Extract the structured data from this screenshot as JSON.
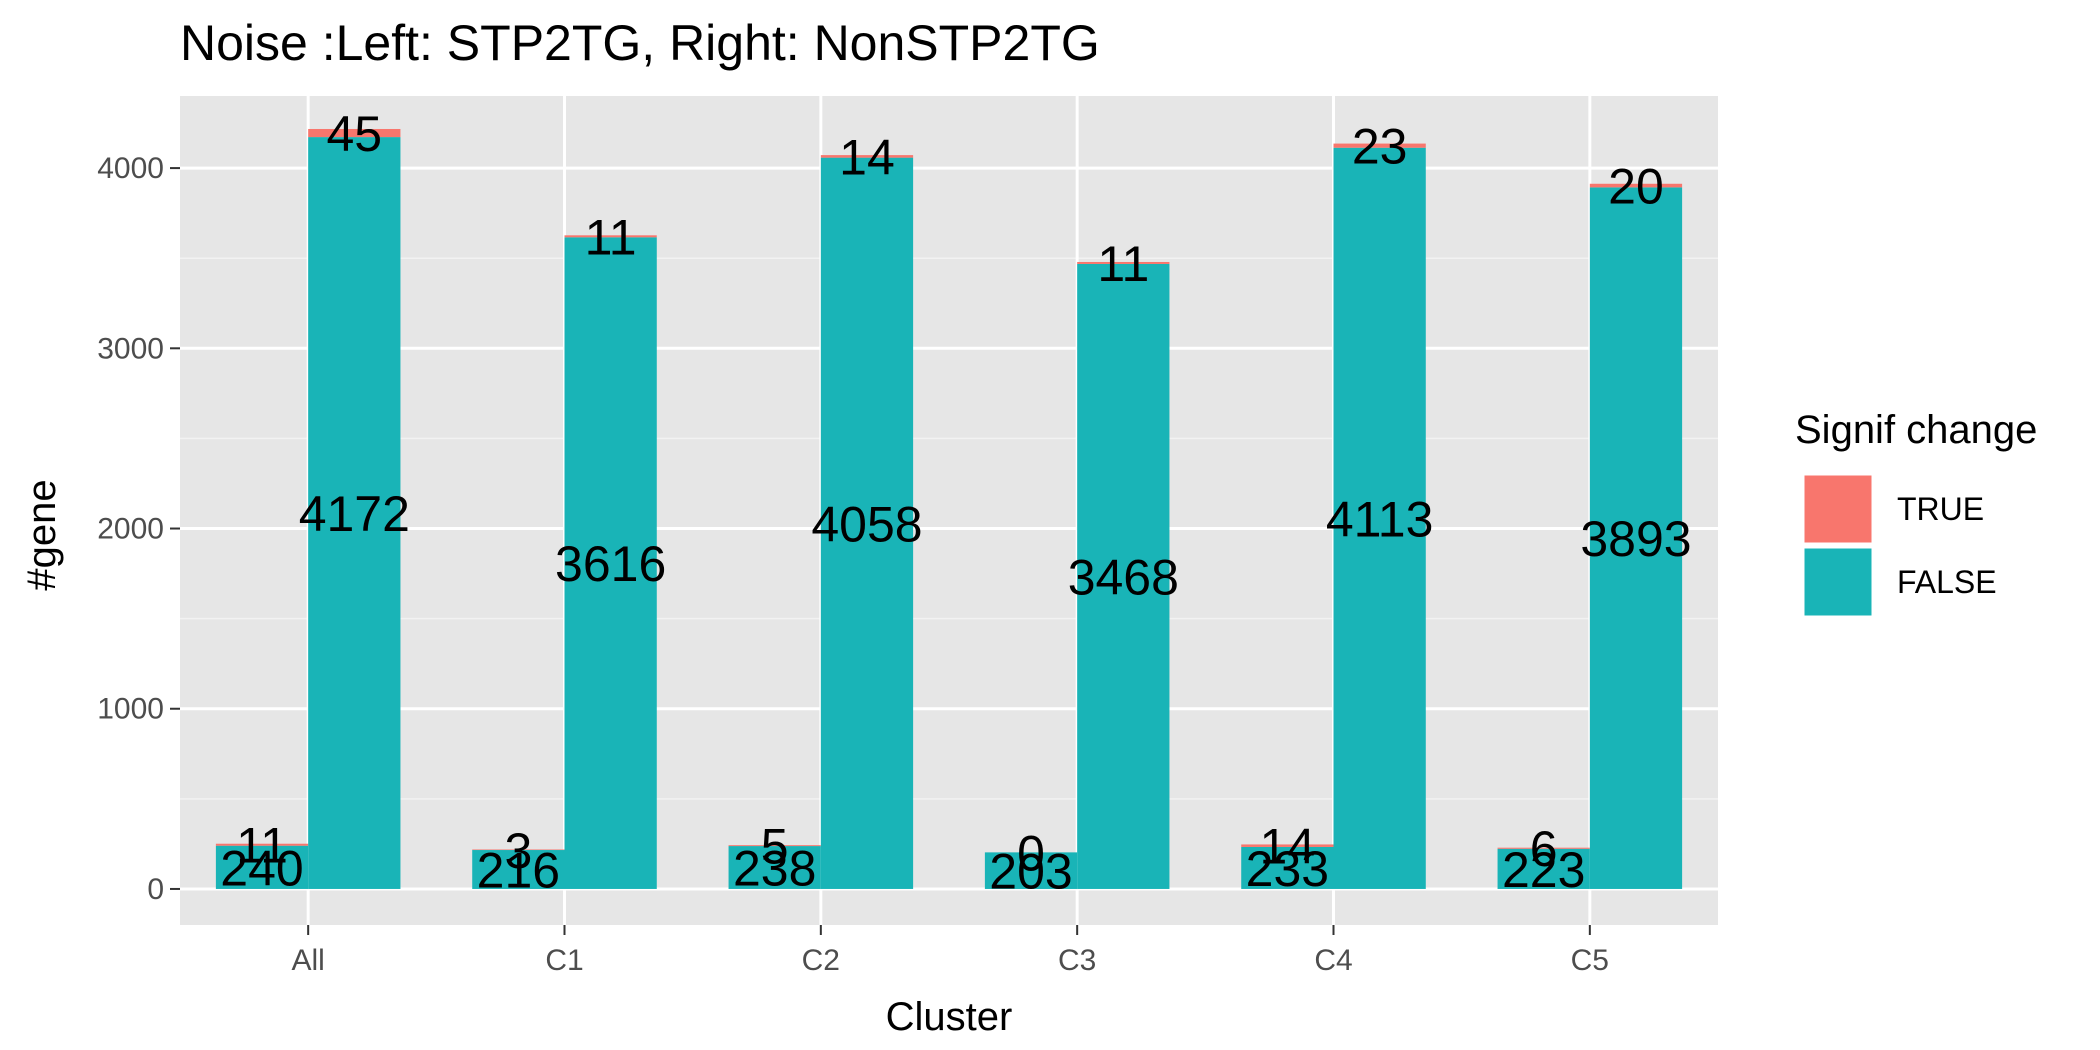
{
  "chart_data": {
    "type": "bar",
    "title": "Noise  :Left: STP2TG, Right: NonSTP2TG",
    "xlabel": "Cluster",
    "ylabel": "#gene",
    "categories": [
      "All",
      "C1",
      "C2",
      "C3",
      "C4",
      "C5"
    ],
    "y_ticks": [
      0,
      1000,
      2000,
      3000,
      4000
    ],
    "ylim": [
      -200,
      4400
    ],
    "stacked": true,
    "grid": true,
    "legend": {
      "title": "Signif change",
      "placement": "right",
      "entries": [
        {
          "label": "TRUE",
          "color": "#F8766D"
        },
        {
          "label": "FALSE",
          "color": "#19B4B7"
        }
      ]
    },
    "groups": [
      {
        "position": "left",
        "false_values": [
          240,
          216,
          238,
          203,
          233,
          223
        ],
        "true_values": [
          11,
          3,
          5,
          0,
          14,
          6
        ],
        "false_labels": [
          "240",
          "216",
          "238",
          "203",
          "233",
          "223"
        ],
        "true_labels": [
          "11",
          "3",
          "5",
          "0",
          "14",
          "6"
        ]
      },
      {
        "position": "right",
        "false_values": [
          4172,
          3616,
          4058,
          3468,
          4113,
          3893
        ],
        "true_values": [
          45,
          11,
          14,
          11,
          23,
          20
        ],
        "false_labels": [
          "4172",
          "3616",
          "4058",
          "3468",
          "4113",
          "3893"
        ],
        "true_labels": [
          "45",
          "11",
          "14",
          "11",
          "23",
          "20"
        ]
      }
    ],
    "colors": {
      "true": "#F8766D",
      "false": "#19B4B7",
      "panel": "#E6E6E6",
      "grid_major": "#FFFFFF",
      "grid_minor": "#F2F2F2"
    }
  }
}
